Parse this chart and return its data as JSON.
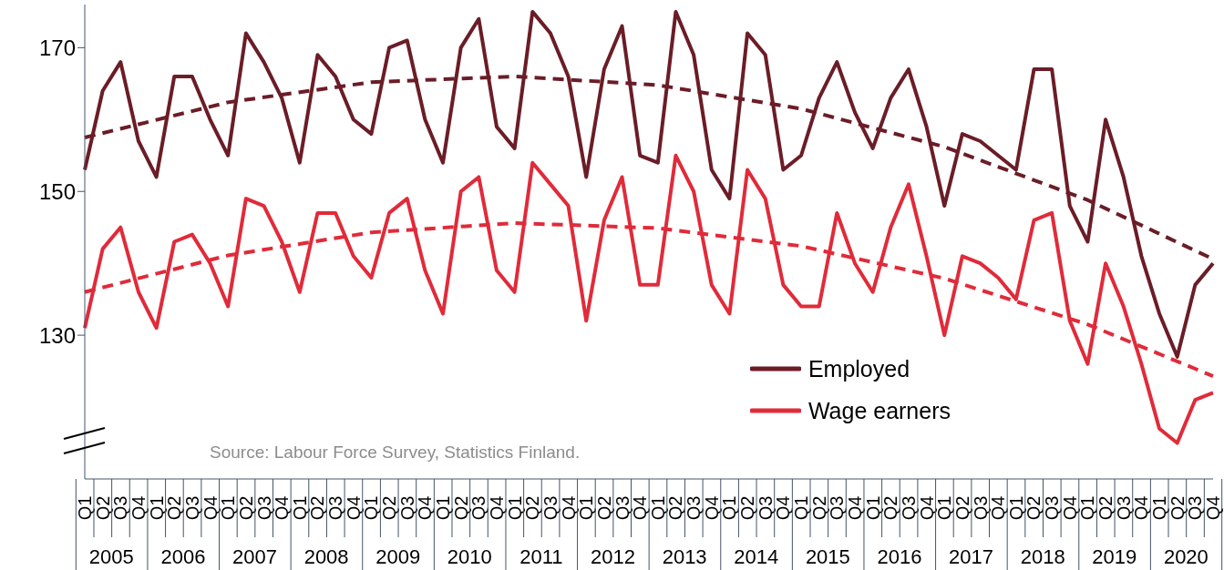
{
  "chart_data": {
    "type": "line",
    "categories": [
      "Q1",
      "Q2",
      "Q3",
      "Q4",
      "Q1",
      "Q2",
      "Q3",
      "Q4",
      "Q1",
      "Q2",
      "Q3",
      "Q4",
      "Q1",
      "Q2",
      "Q3",
      "Q4",
      "Q1",
      "Q2",
      "Q3",
      "Q4",
      "Q1",
      "Q2",
      "Q3",
      "Q4",
      "Q1",
      "Q2",
      "Q3",
      "Q4",
      "Q1",
      "Q2",
      "Q3",
      "Q4",
      "Q1",
      "Q2",
      "Q3",
      "Q4",
      "Q1",
      "Q2",
      "Q3",
      "Q4",
      "Q1",
      "Q2",
      "Q3",
      "Q4",
      "Q1",
      "Q2",
      "Q3",
      "Q4",
      "Q1",
      "Q2",
      "Q3",
      "Q4",
      "Q1",
      "Q2",
      "Q3",
      "Q4",
      "Q1",
      "Q2",
      "Q3",
      "Q4",
      "Q1",
      "Q2",
      "Q3",
      "Q4"
    ],
    "series": [
      {
        "name": "Employed",
        "color": "#6b1d27",
        "line_style": "solid",
        "values": [
          153,
          164,
          168,
          157,
          152,
          166,
          166,
          160,
          155,
          172,
          168,
          163,
          154,
          169,
          166,
          160,
          158,
          170,
          171,
          160,
          154,
          170,
          174,
          159,
          156,
          175,
          172,
          166,
          152,
          167,
          173,
          155,
          154,
          175,
          169,
          153,
          149,
          172,
          169,
          153,
          155,
          163,
          168,
          161,
          156,
          163,
          167,
          159,
          148,
          158,
          157,
          155,
          153,
          167,
          167,
          148,
          143,
          160,
          152,
          141,
          133,
          127,
          137,
          140
        ]
      },
      {
        "name": "Wage earners",
        "color": "#e02b3a",
        "line_style": "solid",
        "values": [
          131,
          142,
          145,
          136,
          131,
          143,
          144,
          140,
          134,
          149,
          148,
          143,
          136,
          147,
          147,
          141,
          138,
          147,
          149,
          139,
          133,
          150,
          152,
          139,
          136,
          154,
          151,
          148,
          132,
          146,
          152,
          137,
          137,
          155,
          150,
          137,
          133,
          153,
          149,
          137,
          134,
          134,
          147,
          140,
          136,
          145,
          151,
          141,
          130,
          141,
          140,
          138,
          135,
          146,
          147,
          132,
          126,
          140,
          134,
          126,
          117,
          115,
          121,
          122
        ]
      },
      {
        "type": "line",
        "color": "#6b1d27",
        "line_style": "dashed",
        "values": [
          157.5,
          null,
          null,
          null,
          null,
          null,
          null,
          null,
          162.4,
          null,
          null,
          null,
          null,
          null,
          null,
          null,
          165.2,
          null,
          null,
          null,
          null,
          null,
          null,
          null,
          166,
          null,
          null,
          null,
          null,
          null,
          null,
          null,
          164.8,
          null,
          null,
          null,
          null,
          null,
          null,
          null,
          161.5,
          null,
          null,
          null,
          null,
          null,
          null,
          null,
          156.2,
          null,
          null,
          null,
          null,
          null,
          null,
          null,
          148.8,
          null,
          null,
          null,
          null,
          null,
          null,
          140.6
        ]
      },
      {
        "type": "line",
        "color": "#e02b3a",
        "line_style": "dashed",
        "values": [
          136,
          null,
          null,
          null,
          null,
          null,
          null,
          null,
          141.1,
          null,
          null,
          null,
          null,
          null,
          null,
          null,
          144.3,
          null,
          null,
          null,
          null,
          null,
          null,
          null,
          145.6,
          null,
          null,
          null,
          null,
          null,
          null,
          null,
          144.9,
          null,
          null,
          null,
          null,
          null,
          null,
          null,
          142.4,
          null,
          null,
          null,
          null,
          null,
          null,
          null,
          137.9,
          null,
          null,
          null,
          null,
          null,
          null,
          null,
          131.5,
          null,
          null,
          null,
          null,
          null,
          null,
          124.3
        ]
      }
    ],
    "ylim": [
      110,
      176
    ],
    "yticks": [
      130,
      150,
      170
    ],
    "grid": false,
    "legend": "bottom right",
    "marker": "none",
    "annotations": [
      "Source: Labour Force Survey, Statistics Finland.",
      "2005",
      "2006",
      "2007",
      "2008",
      "2009",
      "2010",
      "2011",
      "2012",
      "2013",
      "2014",
      "2015",
      "2016",
      "2017",
      "2018",
      "2019",
      "2020"
    ]
  }
}
